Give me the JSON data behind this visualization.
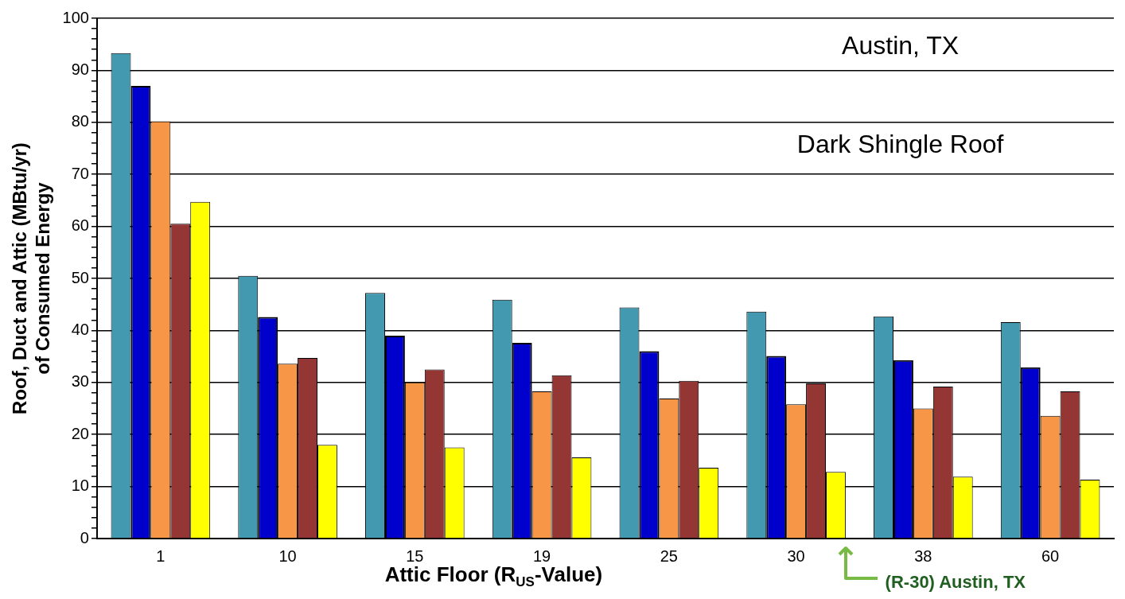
{
  "chart_data": {
    "type": "bar",
    "xlabel": "Attic Floor (R$_{US}$-Value)",
    "ylabel": "Roof, Duct and Attic (MBtu/yr)\nof Consumed Energy",
    "categories": [
      "1",
      "10",
      "15",
      "19",
      "25",
      "30",
      "38",
      "60"
    ],
    "series": [
      {
        "color": "#4299b0",
        "values": [
          93.3,
          50.5,
          47.2,
          45.9,
          44.4,
          43.6,
          42.7,
          41.6
        ]
      },
      {
        "color": "#0000cc",
        "values": [
          87,
          42.6,
          39,
          37.6,
          36,
          35.1,
          34.3,
          32.9
        ]
      },
      {
        "color": "#f79646",
        "values": [
          80.2,
          33.6,
          30,
          28.3,
          26.9,
          25.8,
          25,
          23.6
        ]
      },
      {
        "color": "#943634",
        "values": [
          60.5,
          34.7,
          32.5,
          31.4,
          30.3,
          29.8,
          29.2,
          28.3
        ]
      },
      {
        "color": "#ffff00",
        "values": [
          64.7,
          18,
          17.5,
          15.6,
          13.6,
          12.8,
          11.9,
          11.3
        ]
      }
    ],
    "ylim": [
      0,
      100
    ],
    "yticks": [
      0,
      {
        "value": 2,
        "label": null
      },
      {
        "value": 4,
        "label": null
      },
      {
        "value": 6,
        "label": null
      },
      {
        "value": 8,
        "label": null
      },
      10,
      {
        "value": 12,
        "label": null
      },
      {
        "value": 14,
        "label": null
      },
      {
        "value": 16,
        "label": null
      },
      {
        "value": 18,
        "label": null
      },
      20,
      {
        "value": 22,
        "label": null
      },
      {
        "value": 24,
        "label": null
      },
      {
        "value": 26,
        "label": null
      },
      {
        "value": 28,
        "label": null
      },
      30,
      {
        "value": 32,
        "label": null
      },
      {
        "value": 34,
        "label": null
      },
      {
        "value": 36,
        "label": null
      },
      {
        "value": 38,
        "label": null
      },
      40,
      {
        "value": 42,
        "label": null
      },
      {
        "value": 44,
        "label": null
      },
      {
        "value": 46,
        "label": null
      },
      {
        "value": 48,
        "label": null
      },
      50,
      {
        "value": 52,
        "label": null
      },
      {
        "value": 54,
        "label": null
      },
      {
        "value": 56,
        "label": null
      },
      {
        "value": 58,
        "label": null
      },
      60,
      {
        "value": 62,
        "label": null
      },
      {
        "value": 64,
        "label": null
      },
      {
        "value": 66,
        "label": null
      },
      {
        "value": 68,
        "label": null
      },
      70,
      {
        "value": 72,
        "label": null
      },
      {
        "value": 74,
        "label": null
      },
      {
        "value": 76,
        "label": null
      },
      {
        "value": 78,
        "label": null
      },
      80,
      {
        "value": 82,
        "label": null
      },
      {
        "value": 84,
        "label": null
      },
      {
        "value": 86,
        "label": null
      },
      {
        "value": 88,
        "label": null
      },
      90,
      {
        "value": 92,
        "label": null
      },
      {
        "value": 94,
        "label": null
      },
      {
        "value": 96,
        "label": null
      },
      {
        "value": 98,
        "label": null
      },
      100
    ],
    "grid": "y",
    "legend": false,
    "annotations": [
      "Austin, TX",
      "Dark Shingle Roof",
      "(R-30) Austin, TX"
    ]
  }
}
